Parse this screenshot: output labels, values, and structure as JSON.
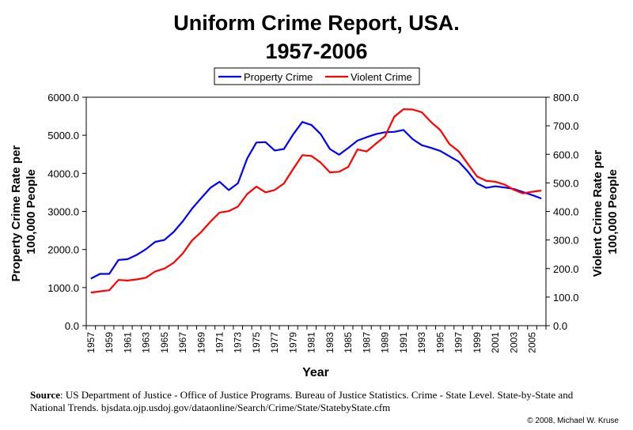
{
  "chart_data": {
    "type": "line",
    "title": "Uniform Crime Report, USA.",
    "subtitle": "1957-2006",
    "xlabel": "Year",
    "ylabel_left": "Property Crime Rate per 100,000 People",
    "ylabel_right": "Violent Crime Rate per 100,000 People",
    "ylim_left": [
      0,
      6000
    ],
    "ylim_right": [
      0,
      800
    ],
    "y_ticks_left": [
      "0.0",
      "1000.0",
      "2000.0",
      "3000.0",
      "4000.0",
      "5000.0",
      "6000.0"
    ],
    "y_ticks_right": [
      "0.0",
      "100.0",
      "200.0",
      "300.0",
      "400.0",
      "500.0",
      "600.0",
      "700.0",
      "800.0"
    ],
    "x_tick_labels": [
      "1957",
      "1959",
      "1961",
      "1963",
      "1965",
      "1967",
      "1969",
      "1971",
      "1973",
      "1975",
      "1977",
      "1979",
      "1981",
      "1983",
      "1985",
      "1987",
      "1989",
      "1991",
      "1993",
      "1995",
      "1997",
      "1999",
      "2001",
      "2003",
      "2005"
    ],
    "x": [
      1957,
      1958,
      1959,
      1960,
      1961,
      1962,
      1963,
      1964,
      1965,
      1966,
      1967,
      1968,
      1969,
      1970,
      1971,
      1972,
      1973,
      1974,
      1975,
      1976,
      1977,
      1978,
      1979,
      1980,
      1981,
      1982,
      1983,
      1984,
      1985,
      1986,
      1987,
      1988,
      1989,
      1990,
      1991,
      1992,
      1993,
      1994,
      1995,
      1996,
      1997,
      1998,
      1999,
      2000,
      2001,
      2002,
      2003,
      2004,
      2005,
      2006
    ],
    "grid": false,
    "legend_position": "top-center",
    "series": [
      {
        "name": "Property Crime",
        "axis": "left",
        "color": "#0000ff",
        "values": [
          1235,
          1360,
          1360,
          1725,
          1745,
          1860,
          2010,
          2200,
          2250,
          2460,
          2740,
          3070,
          3350,
          3620,
          3780,
          3560,
          3740,
          4390,
          4810,
          4820,
          4600,
          4640,
          5020,
          5350,
          5270,
          5030,
          4640,
          4490,
          4670,
          4860,
          4950,
          5030,
          5080,
          5090,
          5140,
          4900,
          4740,
          4670,
          4590,
          4450,
          4310,
          4050,
          3740,
          3620,
          3660,
          3630,
          3590,
          3510,
          3430,
          3340
        ]
      },
      {
        "name": "Violent Crime",
        "axis": "right",
        "color": "#ff0000",
        "values": [
          116,
          120,
          124,
          160,
          158,
          162,
          168,
          190,
          200,
          220,
          253,
          298,
          328,
          364,
          396,
          401,
          417,
          461,
          487,
          467,
          475,
          498,
          548,
          597,
          594,
          571,
          537,
          539,
          556,
          617,
          610,
          637,
          663,
          732,
          758,
          757,
          747,
          713,
          685,
          636,
          611,
          567,
          523,
          507,
          504,
          494,
          476,
          463,
          469,
          473
        ]
      }
    ]
  },
  "source": {
    "label": "Source",
    "text": ": US Department of Justice - Office of Justice Programs. Bureau of Justice Statistics. Crime - State Level. State-by-State and National Trends. bjsdata.ojp.usdoj.gov/dataonline/Search/Crime/State/StatebyState.cfm"
  },
  "copyright": "© 2008, Michael W. Kruse"
}
